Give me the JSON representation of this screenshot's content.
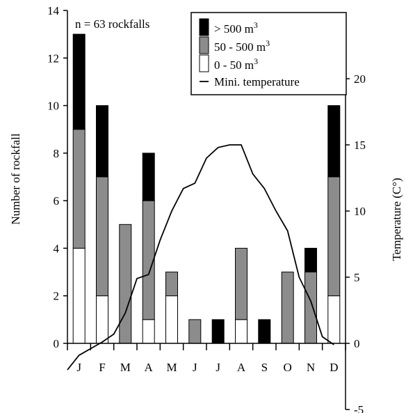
{
  "chart_data": {
    "type": "bar",
    "stacked": true,
    "annotation": "n = 63 rockfalls",
    "categories": [
      "J",
      "F",
      "M",
      "A",
      "M",
      "J",
      "J",
      "A",
      "S",
      "O",
      "N",
      "D"
    ],
    "ylabel_left": "Number of rockfall",
    "ylabel_right": "Temperature (C°)",
    "ylim_left": [
      0,
      14
    ],
    "yticks_left": [
      "0",
      "2",
      "4",
      "6",
      "8",
      "10",
      "12",
      "14"
    ],
    "ylim_right": [
      -5,
      20
    ],
    "yticks_right": [
      "-5",
      "0",
      "5",
      "10",
      "15",
      "20"
    ],
    "series": [
      {
        "name": "0 - 50 m",
        "unit_sup": "3",
        "color": "#ffffff",
        "values": [
          4,
          2,
          0,
          1,
          2,
          0,
          0,
          1,
          0,
          0,
          0,
          2
        ]
      },
      {
        "name": "50 - 500 m",
        "unit_sup": "3",
        "color": "#8c8c8c",
        "values": [
          5,
          5,
          5,
          5,
          1,
          1,
          0,
          3,
          0,
          3,
          3,
          5
        ]
      },
      {
        "name": "> 500 m",
        "unit_sup": "3",
        "color": "#000000",
        "values": [
          4,
          3,
          0,
          2,
          0,
          0,
          1,
          0,
          1,
          0,
          1,
          3
        ]
      }
    ],
    "line_series": {
      "name": "Mini. temperature",
      "color": "#000000",
      "x": [
        0.0,
        0.5,
        1.0,
        1.5,
        2.0,
        2.5,
        3.0,
        3.5,
        4.0,
        4.5,
        5.0,
        5.5,
        6.0,
        6.5,
        7.0,
        7.5,
        8.0,
        8.5,
        9.0,
        9.5,
        10.0,
        10.5,
        11.0,
        11.5
      ],
      "y": [
        -2.0,
        -0.9,
        -0.4,
        0.1,
        0.7,
        2.3,
        4.9,
        5.2,
        7.8,
        10.0,
        11.7,
        12.1,
        14.0,
        14.8,
        15.0,
        15.0,
        12.8,
        11.7,
        10.0,
        8.5,
        5.0,
        3.2,
        0.5,
        -0.1
      ]
    },
    "legend_position": "top-right",
    "grid": false
  }
}
